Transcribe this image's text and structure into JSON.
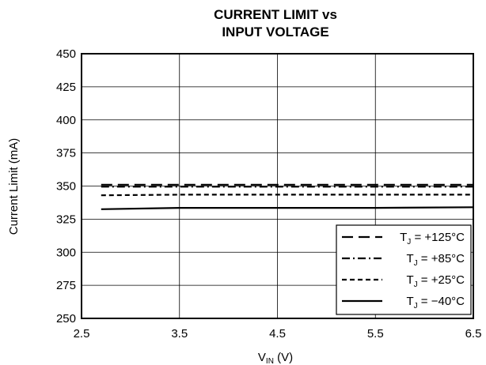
{
  "chart_data": {
    "type": "line",
    "title_lines": [
      "CURRENT LIMIT vs",
      "INPUT VOLTAGE"
    ],
    "xlabel": {
      "main": "V",
      "sub": "IN",
      "unit": " (V)"
    },
    "ylabel": "Current Limit (mA)",
    "xlim": [
      2.5,
      6.5
    ],
    "ylim": [
      250,
      450
    ],
    "x_ticks": [
      2.5,
      3.5,
      4.5,
      5.5,
      6.5
    ],
    "x_tick_labels": [
      "2.5",
      "3.5",
      "4.5",
      "5.5",
      "6.5"
    ],
    "y_ticks": [
      250,
      275,
      300,
      325,
      350,
      375,
      400,
      425,
      450
    ],
    "y_tick_labels": [
      "250",
      "275",
      "300",
      "325",
      "350",
      "375",
      "400",
      "425",
      "450"
    ],
    "grid": true,
    "legend_position": "bottom-right",
    "series": [
      {
        "legend_main": "T",
        "legend_sub": "J",
        "legend_rest": " = +125°C",
        "style": "long-dash",
        "x": [
          2.7,
          3.5,
          4.5,
          5.5,
          6.5
        ],
        "values": [
          351,
          351,
          351,
          351,
          351
        ]
      },
      {
        "legend_main": "T",
        "legend_sub": "J",
        "legend_rest": " = +85°C",
        "style": "dash-dot",
        "x": [
          2.7,
          3.5,
          4.5,
          5.5,
          6.5
        ],
        "values": [
          349.5,
          349.5,
          349.5,
          349.5,
          349.5
        ]
      },
      {
        "legend_main": "T",
        "legend_sub": "J",
        "legend_rest": " = +25°C",
        "style": "short-dash",
        "x": [
          2.7,
          3.5,
          4.5,
          5.5,
          6.5
        ],
        "values": [
          343,
          343.5,
          343.5,
          343.5,
          343.5
        ]
      },
      {
        "legend_main": "T",
        "legend_sub": "J",
        "legend_rest": " = −40°C",
        "style": "solid",
        "x": [
          2.7,
          3.5,
          4.5,
          5.5,
          6.5
        ],
        "values": [
          332.5,
          333.5,
          333.5,
          333.5,
          334
        ]
      }
    ]
  }
}
